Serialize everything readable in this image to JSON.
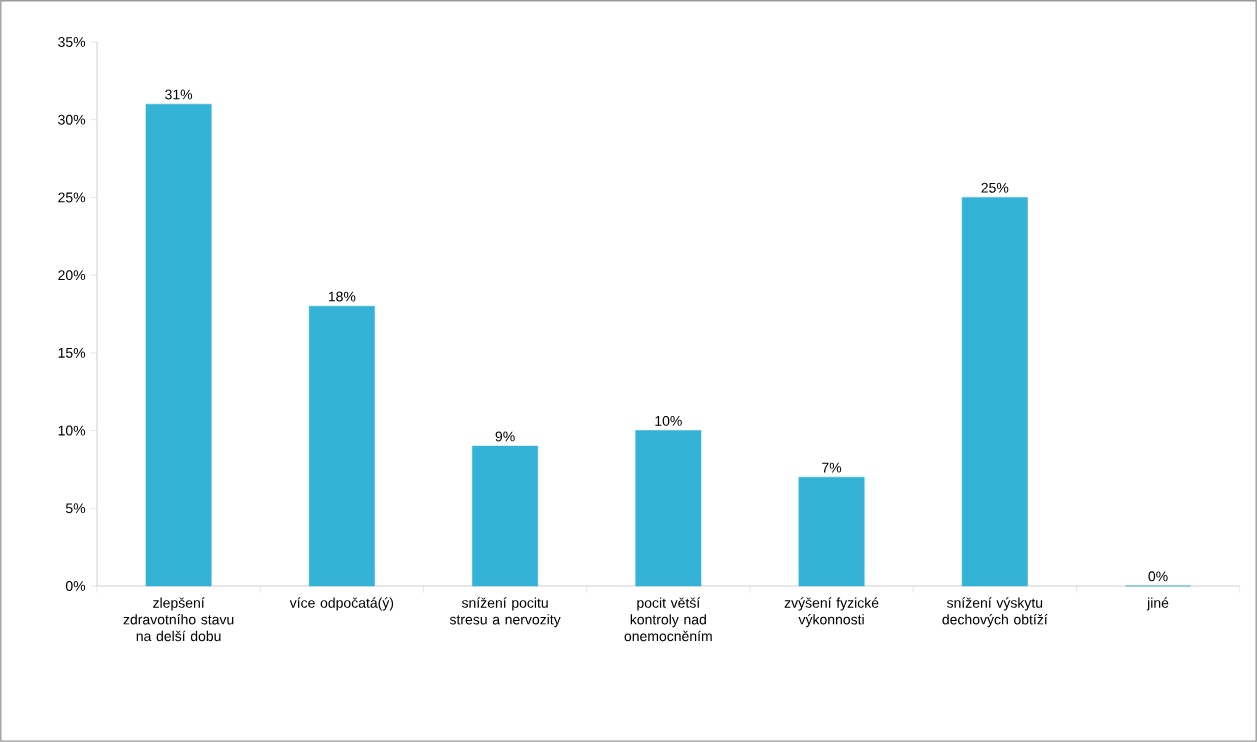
{
  "chart_data": {
    "type": "bar",
    "categories": [
      "zlepšení zdravotního stavu na delší dobu",
      "více odpočatá(ý)",
      "snížení pocitu stresu a nervozity",
      "pocit větší kontroly nad onemocněním",
      "zvýšení fyzické výkonnosti",
      "snížení výskytu dechových obtíží",
      "jiné"
    ],
    "values": [
      31,
      18,
      9,
      10,
      7,
      25,
      0
    ],
    "value_labels": [
      "31%",
      "18%",
      "9%",
      "10%",
      "7%",
      "25%",
      "0%"
    ],
    "color": "#35b3d6",
    "ylim": [
      0,
      35
    ],
    "yticks": [
      {
        "value": 0,
        "label": "0%"
      },
      {
        "value": 5,
        "label": "5%"
      },
      {
        "value": 10,
        "label": "10%"
      },
      {
        "value": 15,
        "label": "15%"
      },
      {
        "value": 20,
        "label": "20%"
      },
      {
        "value": 25,
        "label": "25%"
      },
      {
        "value": 30,
        "label": "30%"
      },
      {
        "value": 35,
        "label": "35%"
      }
    ],
    "grid": false
  }
}
